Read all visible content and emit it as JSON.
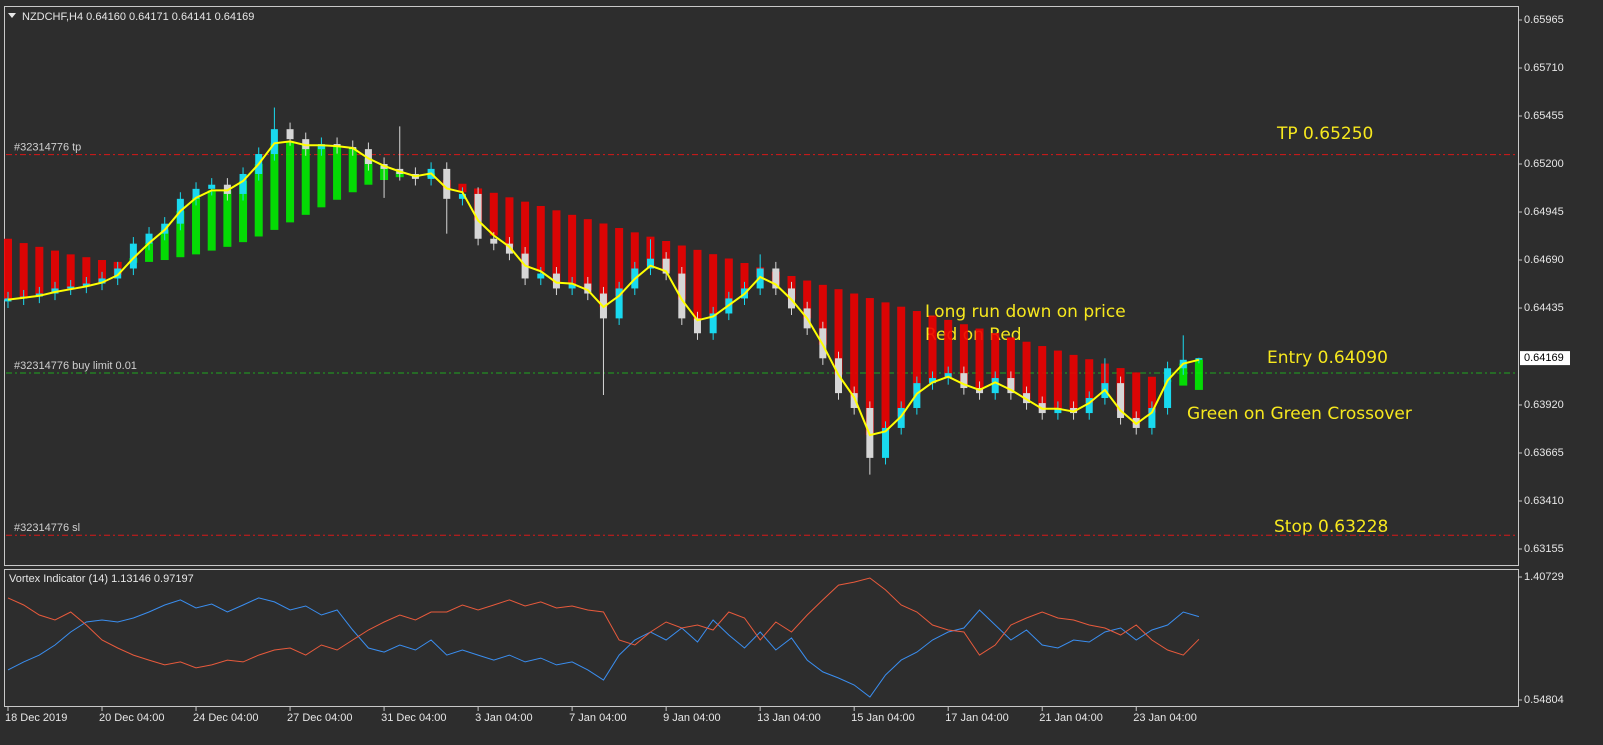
{
  "chart_data": [
    {
      "type": "candlestick",
      "title": "NZDCHF,H4 0.64160 0.64171 0.64141 0.64169",
      "categories": [
        "18 Dec 2019",
        null,
        null,
        null,
        null,
        null,
        "20 Dec 04:00",
        null,
        null,
        null,
        null,
        null,
        "24 Dec 04:00",
        null,
        null,
        null,
        null,
        null,
        "27 Dec 04:00",
        null,
        null,
        null,
        null,
        null,
        "31 Dec 04:00",
        null,
        null,
        null,
        null,
        null,
        "3 Jan 04:00",
        null,
        null,
        null,
        null,
        null,
        "7 Jan 04:00",
        null,
        null,
        null,
        null,
        null,
        "9 Jan 04:00",
        null,
        null,
        null,
        null,
        null,
        "13 Jan 04:00",
        null,
        null,
        null,
        null,
        null,
        "15 Jan 04:00",
        null,
        null,
        null,
        null,
        null,
        "17 Jan 04:00",
        null,
        null,
        null,
        null,
        null,
        "21 Jan 04:00",
        null,
        null,
        null,
        null,
        null,
        "23 Jan 04:00",
        null,
        null,
        null,
        null
      ],
      "candles": [
        [
          0.6447,
          0.64521,
          0.64435,
          0.64486
        ],
        [
          0.64486,
          0.64531,
          0.64451,
          0.64496
        ],
        [
          0.64496,
          0.64547,
          0.64461,
          0.64512
        ],
        [
          0.64512,
          0.64574,
          0.64477,
          0.64539
        ],
        [
          0.64539,
          0.64584,
          0.64504,
          0.64549
        ],
        [
          0.64549,
          0.646,
          0.64514,
          0.64565
        ],
        [
          0.64565,
          0.64627,
          0.6453,
          0.64592
        ],
        [
          0.64592,
          0.6468,
          0.64557,
          0.64645
        ],
        [
          0.64645,
          0.64812,
          0.6461,
          0.64777
        ],
        [
          0.64777,
          0.64865,
          0.64742,
          0.6483
        ],
        [
          0.6483,
          0.64918,
          0.64795,
          0.64883
        ],
        [
          0.64883,
          0.6505,
          0.64848,
          0.65015
        ],
        [
          0.65015,
          0.65103,
          0.6498,
          0.65068
        ],
        [
          0.65068,
          0.65125,
          0.65033,
          0.6509
        ],
        [
          0.6509,
          0.65125,
          0.65006,
          0.65041
        ],
        [
          0.65041,
          0.65182,
          0.65006,
          0.65147
        ],
        [
          0.65147,
          0.65288,
          0.65112,
          0.65253
        ],
        [
          0.65253,
          0.655,
          0.65218,
          0.65385
        ],
        [
          0.65385,
          0.6542,
          0.65297,
          0.65332
        ],
        [
          0.65332,
          0.65367,
          0.65244,
          0.65279
        ],
        [
          0.65279,
          0.65341,
          0.65244,
          0.65306
        ],
        [
          0.65306,
          0.65341,
          0.65255,
          0.6529
        ],
        [
          0.6529,
          0.65325,
          0.65244,
          0.65279
        ],
        [
          0.65279,
          0.65314,
          0.65165,
          0.652
        ],
        [
          0.652,
          0.65235,
          0.6502,
          0.65174
        ],
        [
          0.65174,
          0.654,
          0.65112,
          0.65147
        ],
        [
          0.65147,
          0.65182,
          0.65086,
          0.65121
        ],
        [
          0.65121,
          0.65209,
          0.65086,
          0.65174
        ],
        [
          0.65174,
          0.65209,
          0.6483,
          0.65015
        ],
        [
          0.65015,
          0.65076,
          0.6498,
          0.65041
        ],
        [
          0.65041,
          0.65076,
          0.64768,
          0.64803
        ],
        [
          0.64803,
          0.64838,
          0.64742,
          0.64777
        ],
        [
          0.64777,
          0.64812,
          0.64689,
          0.64724
        ],
        [
          0.64724,
          0.64759,
          0.64557,
          0.64592
        ],
        [
          0.64592,
          0.64653,
          0.64557,
          0.64618
        ],
        [
          0.64618,
          0.64653,
          0.64504,
          0.64539
        ],
        [
          0.64539,
          0.646,
          0.64504,
          0.64565
        ],
        [
          0.64565,
          0.646,
          0.64477,
          0.64512
        ],
        [
          0.64512,
          0.64547,
          0.63973,
          0.6438
        ],
        [
          0.6438,
          0.64574,
          0.64345,
          0.64539
        ],
        [
          0.64539,
          0.6468,
          0.64504,
          0.64645
        ],
        [
          0.64645,
          0.648,
          0.6461,
          0.64697
        ],
        [
          0.64697,
          0.64732,
          0.64583,
          0.64618
        ],
        [
          0.64618,
          0.64653,
          0.64345,
          0.6438
        ],
        [
          0.6438,
          0.64415,
          0.64266,
          0.64301
        ],
        [
          0.64301,
          0.64441,
          0.64266,
          0.64406
        ],
        [
          0.64406,
          0.64521,
          0.64371,
          0.64486
        ],
        [
          0.64486,
          0.64574,
          0.64451,
          0.64539
        ],
        [
          0.64539,
          0.6472,
          0.64504,
          0.64645
        ],
        [
          0.64645,
          0.6468,
          0.64504,
          0.64539
        ],
        [
          0.64539,
          0.64574,
          0.64398,
          0.64433
        ],
        [
          0.64433,
          0.64468,
          0.64292,
          0.64327
        ],
        [
          0.64327,
          0.64362,
          0.64133,
          0.64168
        ],
        [
          0.64168,
          0.64203,
          0.63948,
          0.63983
        ],
        [
          0.63983,
          0.64018,
          0.63869,
          0.63904
        ],
        [
          0.63904,
          0.63939,
          0.6355,
          0.63639
        ],
        [
          0.63639,
          0.63833,
          0.63604,
          0.63798
        ],
        [
          0.63798,
          0.63939,
          0.63763,
          0.63904
        ],
        [
          0.63904,
          0.64071,
          0.63869,
          0.64036
        ],
        [
          0.64036,
          0.64098,
          0.64001,
          0.64063
        ],
        [
          0.64063,
          0.64124,
          0.64028,
          0.64089
        ],
        [
          0.64089,
          0.64124,
          0.63975,
          0.6401
        ],
        [
          0.6401,
          0.64045,
          0.63948,
          0.63983
        ],
        [
          0.63983,
          0.64098,
          0.63948,
          0.64063
        ],
        [
          0.64063,
          0.64098,
          0.63948,
          0.63983
        ],
        [
          0.63983,
          0.64018,
          0.63895,
          0.6393
        ],
        [
          0.6393,
          0.63965,
          0.63842,
          0.63877
        ],
        [
          0.63877,
          0.63939,
          0.63842,
          0.63904
        ],
        [
          0.63904,
          0.63939,
          0.63842,
          0.63877
        ],
        [
          0.63877,
          0.63992,
          0.63842,
          0.63957
        ],
        [
          0.63957,
          0.64168,
          0.63922,
          0.64036
        ],
        [
          0.64036,
          0.64071,
          0.63816,
          0.63851
        ],
        [
          0.63851,
          0.63886,
          0.63763,
          0.63798
        ],
        [
          0.63798,
          0.63939,
          0.63763,
          0.63904
        ],
        [
          0.63904,
          0.6415,
          0.63869,
          0.64115
        ],
        [
          0.64115,
          0.6429,
          0.6408,
          0.6416
        ],
        [
          0.6416,
          0.64171,
          0.64141,
          0.64169
        ]
      ],
      "up_color": "#19d9ef",
      "down_color": "#d6d6d6",
      "fast_ma": {
        "color": "#ffff00",
        "values": [
          0.6448,
          0.6449,
          0.645,
          0.6452,
          0.64535,
          0.6455,
          0.6457,
          0.6461,
          0.647,
          0.6478,
          0.6485,
          0.6495,
          0.6502,
          0.6506,
          0.6506,
          0.6511,
          0.652,
          0.6531,
          0.6532,
          0.653,
          0.653,
          0.65295,
          0.65285,
          0.6523,
          0.6519,
          0.6516,
          0.65135,
          0.6515,
          0.6507,
          0.6505,
          0.649,
          0.6482,
          0.6476,
          0.6466,
          0.6463,
          0.6457,
          0.64565,
          0.6453,
          0.6444,
          0.645,
          0.6459,
          0.6466,
          0.6463,
          0.6448,
          0.6437,
          0.6439,
          0.6445,
          0.6451,
          0.646,
          0.6456,
          0.6448,
          0.6438,
          0.6424,
          0.6408,
          0.6396,
          0.6376,
          0.6378,
          0.6386,
          0.6398,
          0.6404,
          0.6407,
          0.6403,
          0.64,
          0.6404,
          0.64,
          0.6395,
          0.639,
          0.639,
          0.63885,
          0.6393,
          0.64,
          0.6389,
          0.6382,
          0.6388,
          0.6405,
          0.6414,
          0.6416
        ]
      },
      "slow_ma": {
        "up_color": "#00ee00",
        "down_color": "#ee0000",
        "values": [
          0.64803,
          0.6478,
          0.6476,
          0.6474,
          0.6472,
          0.64705,
          0.6469,
          0.6468,
          0.64675,
          0.6468,
          0.6469,
          0.64705,
          0.6472,
          0.6474,
          0.6476,
          0.64785,
          0.64815,
          0.6485,
          0.6489,
          0.6493,
          0.6497,
          0.6501,
          0.6505,
          0.6509,
          0.65115,
          0.6513,
          0.65135,
          0.6513,
          0.65115,
          0.65095,
          0.6507,
          0.65047,
          0.65023,
          0.65,
          0.64977,
          0.64954,
          0.6493,
          0.64907,
          0.64884,
          0.6486,
          0.64837,
          0.64814,
          0.64791,
          0.64767,
          0.64744,
          0.64721,
          0.64698,
          0.64674,
          0.64651,
          0.64628,
          0.64605,
          0.64581,
          0.64558,
          0.64535,
          0.64512,
          0.64488,
          0.64465,
          0.64442,
          0.64419,
          0.64395,
          0.64372,
          0.64349,
          0.64326,
          0.64302,
          0.64279,
          0.64256,
          0.64233,
          0.64209,
          0.64186,
          0.64163,
          0.6414,
          0.64116,
          0.64093,
          0.6407,
          0.64047,
          0.64023,
          0.64
        ]
      },
      "levels": [
        {
          "label": "#32314776 tp",
          "value": 0.6525,
          "color": "#d81818"
        },
        {
          "label": "#32314776 buy limit 0.01",
          "value": 0.6409,
          "color": "#1fa81f"
        },
        {
          "label": "#32314776 sl",
          "value": 0.63228,
          "color": "#d81818"
        }
      ],
      "annotations": [
        "TP 0.65250",
        "Entry 0.64090",
        "Stop 0.63228",
        "Long run down on price",
        "Red on Red",
        "Green on Green Crossover"
      ],
      "ylim": [
        0.6307,
        0.66034
      ],
      "yticks": [
        0.65965,
        {
          "value": 0.6571,
          "label": "0.65710"
        },
        0.65455,
        {
          "value": 0.652,
          "label": "0.65200"
        },
        0.64945,
        {
          "value": 0.6469,
          "label": "0.64690"
        },
        0.64435,
        {
          "value": 0.6392,
          "label": "0.63920"
        },
        0.63665,
        {
          "value": 0.6341,
          "label": "0.63410"
        },
        0.63155
      ],
      "current_price": 0.64169
    },
    {
      "type": "line",
      "title": "Vortex Indicator (14) 1.13146 0.97197",
      "series": [
        {
          "color": "#3a8ef0",
          "values": [
            0.758,
            0.814,
            0.862,
            0.932,
            1.023,
            1.093,
            1.107,
            1.093,
            1.121,
            1.163,
            1.212,
            1.247,
            1.191,
            1.219,
            1.163,
            1.212,
            1.261,
            1.233,
            1.177,
            1.205,
            1.142,
            1.177,
            1.037,
            0.911,
            0.883,
            0.932,
            0.897,
            0.967,
            0.862,
            0.897,
            0.862,
            0.827,
            0.862,
            0.814,
            0.841,
            0.793,
            0.814,
            0.758,
            0.688,
            0.862,
            0.967,
            1.023,
            0.967,
            1.051,
            0.953,
            1.107,
            1.002,
            0.911,
            1.023,
            0.897,
            0.981,
            0.827,
            0.744,
            0.702,
            0.653,
            0.569,
            0.723,
            0.827,
            0.883,
            0.967,
            1.023,
            1.051,
            1.177,
            1.072,
            0.967,
            1.037,
            0.932,
            0.911,
            0.967,
            0.953,
            1.023,
            1.051,
            0.967,
            1.037,
            1.072,
            1.163,
            1.131
          ]
        },
        {
          "color": "#e85a3c",
          "values": [
            1.261,
            1.212,
            1.142,
            1.107,
            1.163,
            1.072,
            0.967,
            0.911,
            0.862,
            0.827,
            0.793,
            0.814,
            0.772,
            0.793,
            0.827,
            0.814,
            0.862,
            0.897,
            0.911,
            0.862,
            0.932,
            0.897,
            0.967,
            1.037,
            1.093,
            1.142,
            1.107,
            1.163,
            1.163,
            1.212,
            1.177,
            1.212,
            1.247,
            1.205,
            1.233,
            1.191,
            1.205,
            1.177,
            1.163,
            0.967,
            0.932,
            1.023,
            1.093,
            1.051,
            1.072,
            1.037,
            1.163,
            1.121,
            0.967,
            1.093,
            1.023,
            1.142,
            1.247,
            1.351,
            1.372,
            1.4,
            1.317,
            1.212,
            1.163,
            1.072,
            1.037,
            1.023,
            0.862,
            0.932,
            1.072,
            1.121,
            1.163,
            1.121,
            1.107,
            1.072,
            1.051,
            1.002,
            1.072,
            0.967,
            0.897,
            0.862,
            0.972
          ]
        }
      ],
      "ylim": [
        0.54804,
        1.40729
      ],
      "yticks": [
        1.40729,
        0.54804
      ]
    }
  ]
}
